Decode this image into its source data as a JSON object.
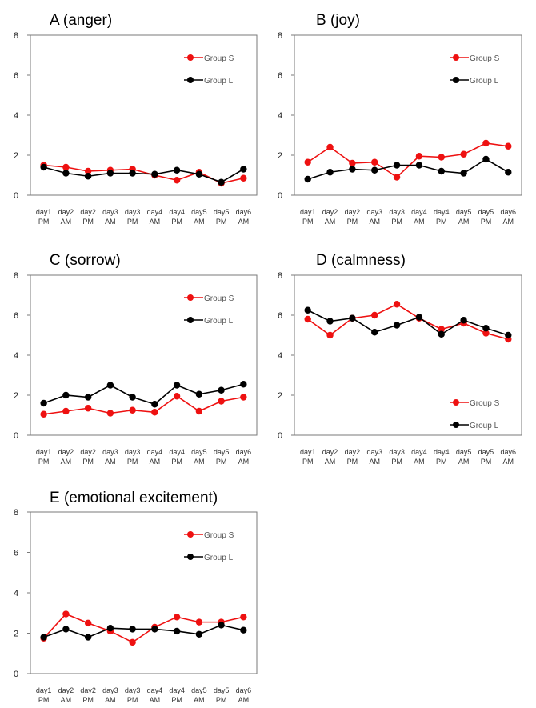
{
  "figure": {
    "y_ticks": [
      "0",
      "2",
      "4",
      "6",
      "8"
    ],
    "x_days": [
      "day1",
      "day2",
      "day2",
      "day3",
      "day3",
      "day4",
      "day4",
      "day5",
      "day5",
      "day6"
    ],
    "x_ampm": [
      "PM",
      "AM",
      "PM",
      "AM",
      "PM",
      "AM",
      "PM",
      "AM",
      "PM",
      "AM"
    ],
    "colors": {
      "group_s": "#ee1111",
      "group_l": "#000000",
      "axis": "#7a7a7a"
    }
  },
  "chart_data": [
    {
      "type": "line",
      "title": "A (anger)",
      "categories": [
        "day1 PM",
        "day2 AM",
        "day2 PM",
        "day3 AM",
        "day3 PM",
        "day4 AM",
        "day4 PM",
        "day5 AM",
        "day5 PM",
        "day6 AM"
      ],
      "ylim": [
        0,
        8
      ],
      "legend_position": "top-right",
      "series": [
        {
          "name": "Group S",
          "values": [
            1.5,
            1.4,
            1.2,
            1.25,
            1.3,
            1.0,
            0.75,
            1.15,
            0.6,
            0.85
          ]
        },
        {
          "name": "Group L",
          "values": [
            1.4,
            1.1,
            0.95,
            1.1,
            1.1,
            1.05,
            1.25,
            1.05,
            0.65,
            1.3
          ]
        }
      ]
    },
    {
      "type": "line",
      "title": "B (joy)",
      "categories": [
        "day1 PM",
        "day2 AM",
        "day2 PM",
        "day3 AM",
        "day3 PM",
        "day4 AM",
        "day4 PM",
        "day5 AM",
        "day5 PM",
        "day6 AM"
      ],
      "ylim": [
        0,
        8
      ],
      "legend_position": "top-right",
      "series": [
        {
          "name": "Group S",
          "values": [
            1.65,
            2.4,
            1.6,
            1.65,
            0.9,
            1.95,
            1.9,
            2.05,
            2.6,
            2.45
          ]
        },
        {
          "name": "Group L",
          "values": [
            0.8,
            1.15,
            1.3,
            1.25,
            1.5,
            1.5,
            1.2,
            1.1,
            1.8,
            1.15
          ]
        }
      ]
    },
    {
      "type": "line",
      "title": "C (sorrow)",
      "categories": [
        "day1 PM",
        "day2 AM",
        "day2 PM",
        "day3 AM",
        "day3 PM",
        "day4 AM",
        "day4 PM",
        "day5 AM",
        "day5 PM",
        "day6 AM"
      ],
      "ylim": [
        0,
        8
      ],
      "legend_position": "top-right",
      "series": [
        {
          "name": "Group S",
          "values": [
            1.05,
            1.2,
            1.35,
            1.1,
            1.25,
            1.15,
            1.95,
            1.2,
            1.7,
            1.9
          ]
        },
        {
          "name": "Group L",
          "values": [
            1.6,
            2.0,
            1.9,
            2.5,
            1.9,
            1.55,
            2.5,
            2.05,
            2.25,
            2.55
          ]
        }
      ]
    },
    {
      "type": "line",
      "title": "D (calmness)",
      "categories": [
        "day1 PM",
        "day2 AM",
        "day2 PM",
        "day3 AM",
        "day3 PM",
        "day4 AM",
        "day4 PM",
        "day5 AM",
        "day5 PM",
        "day6 AM"
      ],
      "ylim": [
        0,
        8
      ],
      "legend_position": "bottom-right",
      "series": [
        {
          "name": "Group S",
          "values": [
            5.8,
            5.0,
            5.85,
            6.0,
            6.55,
            5.85,
            5.3,
            5.6,
            5.1,
            4.8
          ]
        },
        {
          "name": "Group L",
          "values": [
            6.25,
            5.7,
            5.85,
            5.15,
            5.5,
            5.9,
            5.05,
            5.75,
            5.35,
            5.0
          ]
        }
      ]
    },
    {
      "type": "line",
      "title": "E (emotional excitement)",
      "categories": [
        "day1 PM",
        "day2 AM",
        "day2 PM",
        "day3 AM",
        "day3 PM",
        "day4 AM",
        "day4 PM",
        "day5 AM",
        "day5 PM",
        "day6 AM"
      ],
      "ylim": [
        0,
        8
      ],
      "legend_position": "top-right",
      "series": [
        {
          "name": "Group S",
          "values": [
            1.75,
            2.95,
            2.5,
            2.1,
            1.55,
            2.3,
            2.8,
            2.55,
            2.55,
            2.8
          ]
        },
        {
          "name": "Group L",
          "values": [
            1.8,
            2.2,
            1.8,
            2.25,
            2.2,
            2.2,
            2.1,
            1.95,
            2.4,
            2.15
          ]
        }
      ]
    }
  ]
}
